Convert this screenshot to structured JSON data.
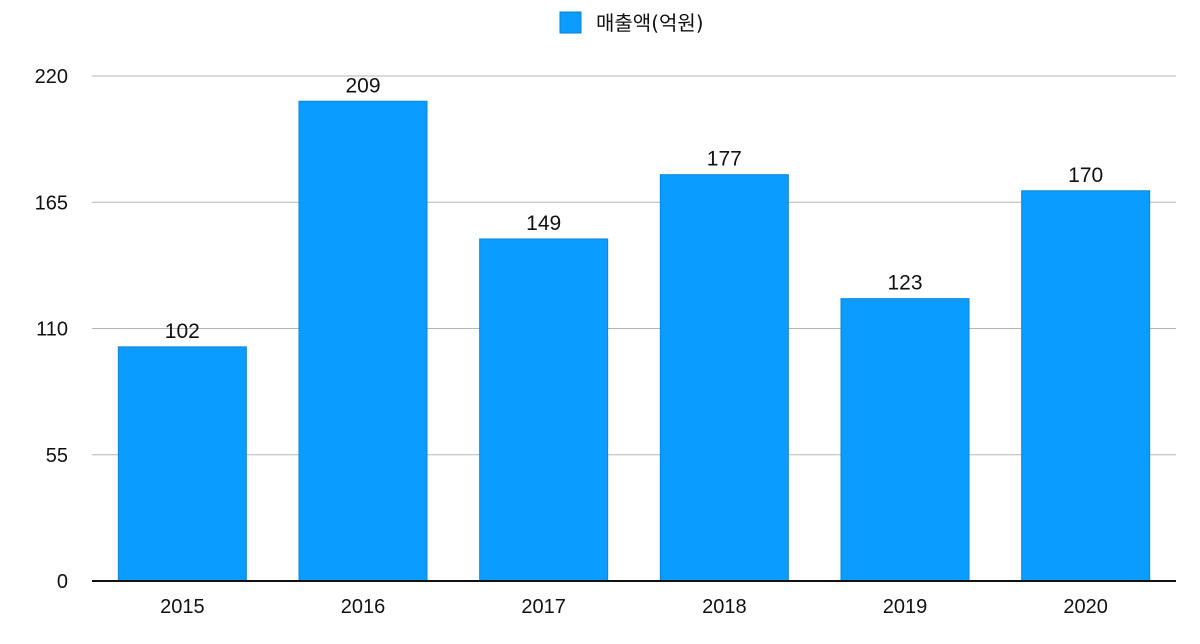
{
  "chart_data": {
    "type": "bar",
    "categories": [
      "2015",
      "2016",
      "2017",
      "2018",
      "2019",
      "2020"
    ],
    "series": [
      {
        "name": "매출액(억원)",
        "values": [
          102,
          209,
          149,
          177,
          123,
          170
        ],
        "color": "#0a9dff"
      }
    ],
    "title": "",
    "xlabel": "",
    "ylabel": "",
    "ylim": [
      0,
      220
    ],
    "yticks": [
      0,
      55,
      110,
      165,
      220
    ],
    "grid": true,
    "legend": "top-center",
    "data_labels": true
  }
}
